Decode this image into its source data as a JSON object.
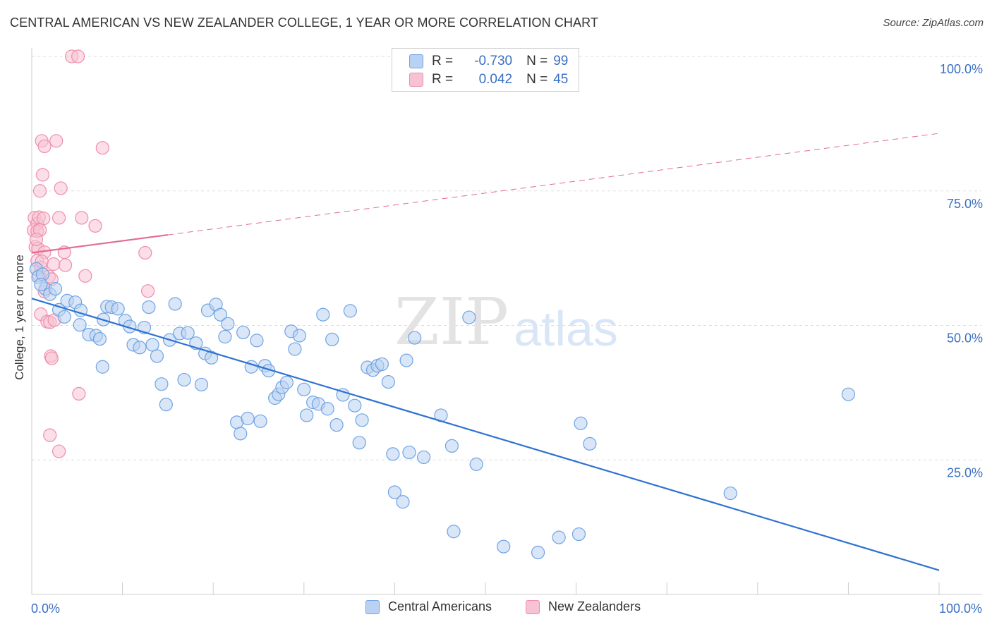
{
  "title": "CENTRAL AMERICAN VS NEW ZEALANDER COLLEGE, 1 YEAR OR MORE CORRELATION CHART",
  "source": "Source: ZipAtlas.com",
  "watermark": {
    "zip": "ZIP",
    "atlas": "atlas"
  },
  "colors": {
    "blue": "#6fa3e3",
    "blue_fill": "#b9d2f3",
    "blue_line": "#2e72d2",
    "pink": "#ee8eab",
    "pink_fill": "#f7c2d3",
    "pink_line": "#e36b93",
    "tick_text": "#3a6fc4",
    "grid": "#dddddd"
  },
  "legend": {
    "rows": [
      {
        "r_label": "R =",
        "r_value": "-0.730",
        "n_label": "N =",
        "n_value": "99"
      },
      {
        "r_label": "R =",
        "r_value": "0.042",
        "n_label": "N =",
        "n_value": "45"
      }
    ]
  },
  "series_legend": {
    "blue": "Central Americans",
    "pink": "New Zealanders"
  },
  "chart_data": {
    "type": "scatter",
    "title": "CENTRAL AMERICAN VS NEW ZEALANDER COLLEGE, 1 YEAR OR MORE CORRELATION CHART",
    "xlabel": "",
    "ylabel": "College, 1 year or more",
    "xlim": [
      0,
      100
    ],
    "ylim": [
      0,
      100
    ],
    "x_tick_labels": [
      "0.0%",
      "100.0%"
    ],
    "y_ticks": [
      {
        "value": 25,
        "label": "25.0%"
      },
      {
        "value": 50,
        "label": "50.0%"
      },
      {
        "value": 75,
        "label": "75.0%"
      },
      {
        "value": 100,
        "label": "100.0%"
      }
    ],
    "series": [
      {
        "name": "Central Americans",
        "r": -0.73,
        "n": 99,
        "trend": {
          "x0": 0,
          "y0": 55.0,
          "x1": 100,
          "y1": 4.5
        },
        "points": [
          [
            0.5,
            60.5
          ],
          [
            0.7,
            59.0
          ],
          [
            1.2,
            59.5
          ],
          [
            1.5,
            56.8
          ],
          [
            2.0,
            55.8
          ],
          [
            2.6,
            56.8
          ],
          [
            3.0,
            52.9
          ],
          [
            3.6,
            51.6
          ],
          [
            3.9,
            54.6
          ],
          [
            4.8,
            54.3
          ],
          [
            5.4,
            52.8
          ],
          [
            5.3,
            50.1
          ],
          [
            6.3,
            48.3
          ],
          [
            7.1,
            48.1
          ],
          [
            7.5,
            47.5
          ],
          [
            7.8,
            42.3
          ],
          [
            7.9,
            51.1
          ],
          [
            8.3,
            53.5
          ],
          [
            8.8,
            53.4
          ],
          [
            9.5,
            53.1
          ],
          [
            10.3,
            50.9
          ],
          [
            10.8,
            49.8
          ],
          [
            11.2,
            46.4
          ],
          [
            11.9,
            45.9
          ],
          [
            12.4,
            49.6
          ],
          [
            12.9,
            53.4
          ],
          [
            13.3,
            46.4
          ],
          [
            13.8,
            44.3
          ],
          [
            14.3,
            39.1
          ],
          [
            14.8,
            35.3
          ],
          [
            15.2,
            47.3
          ],
          [
            15.8,
            54.0
          ],
          [
            16.3,
            48.5
          ],
          [
            16.8,
            39.9
          ],
          [
            17.2,
            48.6
          ],
          [
            18.1,
            46.7
          ],
          [
            18.7,
            39.0
          ],
          [
            19.1,
            44.8
          ],
          [
            19.4,
            52.8
          ],
          [
            19.8,
            44.0
          ],
          [
            20.3,
            53.9
          ],
          [
            20.8,
            52.0
          ],
          [
            21.3,
            47.9
          ],
          [
            21.6,
            50.3
          ],
          [
            22.6,
            32.0
          ],
          [
            23.0,
            29.9
          ],
          [
            23.3,
            48.7
          ],
          [
            23.8,
            32.7
          ],
          [
            24.2,
            42.3
          ],
          [
            24.8,
            47.2
          ],
          [
            25.2,
            32.2
          ],
          [
            25.7,
            42.5
          ],
          [
            26.1,
            41.6
          ],
          [
            26.8,
            36.5
          ],
          [
            27.2,
            37.2
          ],
          [
            27.6,
            38.5
          ],
          [
            28.1,
            39.4
          ],
          [
            28.6,
            48.9
          ],
          [
            29.0,
            45.6
          ],
          [
            29.5,
            48.1
          ],
          [
            30.0,
            38.1
          ],
          [
            30.3,
            33.3
          ],
          [
            31.0,
            35.7
          ],
          [
            31.6,
            35.4
          ],
          [
            32.1,
            52.0
          ],
          [
            32.6,
            34.5
          ],
          [
            33.1,
            47.4
          ],
          [
            33.6,
            31.5
          ],
          [
            34.3,
            37.1
          ],
          [
            35.1,
            52.7
          ],
          [
            35.6,
            35.1
          ],
          [
            36.1,
            28.2
          ],
          [
            36.4,
            32.4
          ],
          [
            37.0,
            42.2
          ],
          [
            37.6,
            41.7
          ],
          [
            38.1,
            42.5
          ],
          [
            38.6,
            42.8
          ],
          [
            39.3,
            39.5
          ],
          [
            39.8,
            26.1
          ],
          [
            40.0,
            19.0
          ],
          [
            40.9,
            17.2
          ],
          [
            41.3,
            43.5
          ],
          [
            41.6,
            26.4
          ],
          [
            42.2,
            47.7
          ],
          [
            43.2,
            25.5
          ],
          [
            45.1,
            33.3
          ],
          [
            46.3,
            27.6
          ],
          [
            46.5,
            11.7
          ],
          [
            48.2,
            51.5
          ],
          [
            49.0,
            24.2
          ],
          [
            52.0,
            8.9
          ],
          [
            55.8,
            7.8
          ],
          [
            58.1,
            10.6
          ],
          [
            60.3,
            11.2
          ],
          [
            60.5,
            31.8
          ],
          [
            61.5,
            28.0
          ],
          [
            77.0,
            18.8
          ],
          [
            90.0,
            37.2
          ],
          [
            1.0,
            57.6
          ]
        ]
      },
      {
        "name": "New Zealanders",
        "r": 0.042,
        "n": 45,
        "trend": {
          "x0": 0,
          "y0": 63.5,
          "x1": 100,
          "y1": 85.7,
          "solid_until_x": 15
        },
        "points": [
          [
            4.4,
            100.0
          ],
          [
            5.1,
            100.0
          ],
          [
            1.1,
            84.3
          ],
          [
            1.4,
            83.3
          ],
          [
            2.7,
            84.3
          ],
          [
            7.8,
            83.0
          ],
          [
            1.2,
            78.0
          ],
          [
            0.9,
            75.0
          ],
          [
            3.2,
            75.5
          ],
          [
            0.3,
            70.0
          ],
          [
            0.6,
            68.9
          ],
          [
            0.8,
            70.1
          ],
          [
            1.3,
            69.9
          ],
          [
            3.0,
            70.0
          ],
          [
            5.5,
            70.0
          ],
          [
            7.0,
            68.5
          ],
          [
            0.2,
            67.7
          ],
          [
            0.6,
            67.5
          ],
          [
            0.9,
            67.7
          ],
          [
            0.4,
            64.6
          ],
          [
            0.7,
            64.3
          ],
          [
            1.4,
            63.6
          ],
          [
            3.6,
            63.6
          ],
          [
            12.5,
            63.5
          ],
          [
            0.6,
            62.0
          ],
          [
            1.0,
            60.8
          ],
          [
            2.4,
            61.4
          ],
          [
            3.7,
            61.2
          ],
          [
            0.8,
            59.3
          ],
          [
            1.9,
            59.1
          ],
          [
            5.9,
            59.2
          ],
          [
            2.2,
            58.6
          ],
          [
            1.4,
            56.3
          ],
          [
            12.8,
            56.4
          ],
          [
            1.0,
            52.1
          ],
          [
            1.7,
            50.7
          ],
          [
            2.0,
            50.6
          ],
          [
            2.5,
            51.0
          ],
          [
            2.1,
            44.3
          ],
          [
            2.2,
            43.9
          ],
          [
            5.2,
            37.3
          ],
          [
            2.0,
            29.6
          ],
          [
            3.0,
            26.6
          ],
          [
            1.1,
            61.9
          ],
          [
            0.5,
            66.0
          ]
        ]
      }
    ]
  }
}
